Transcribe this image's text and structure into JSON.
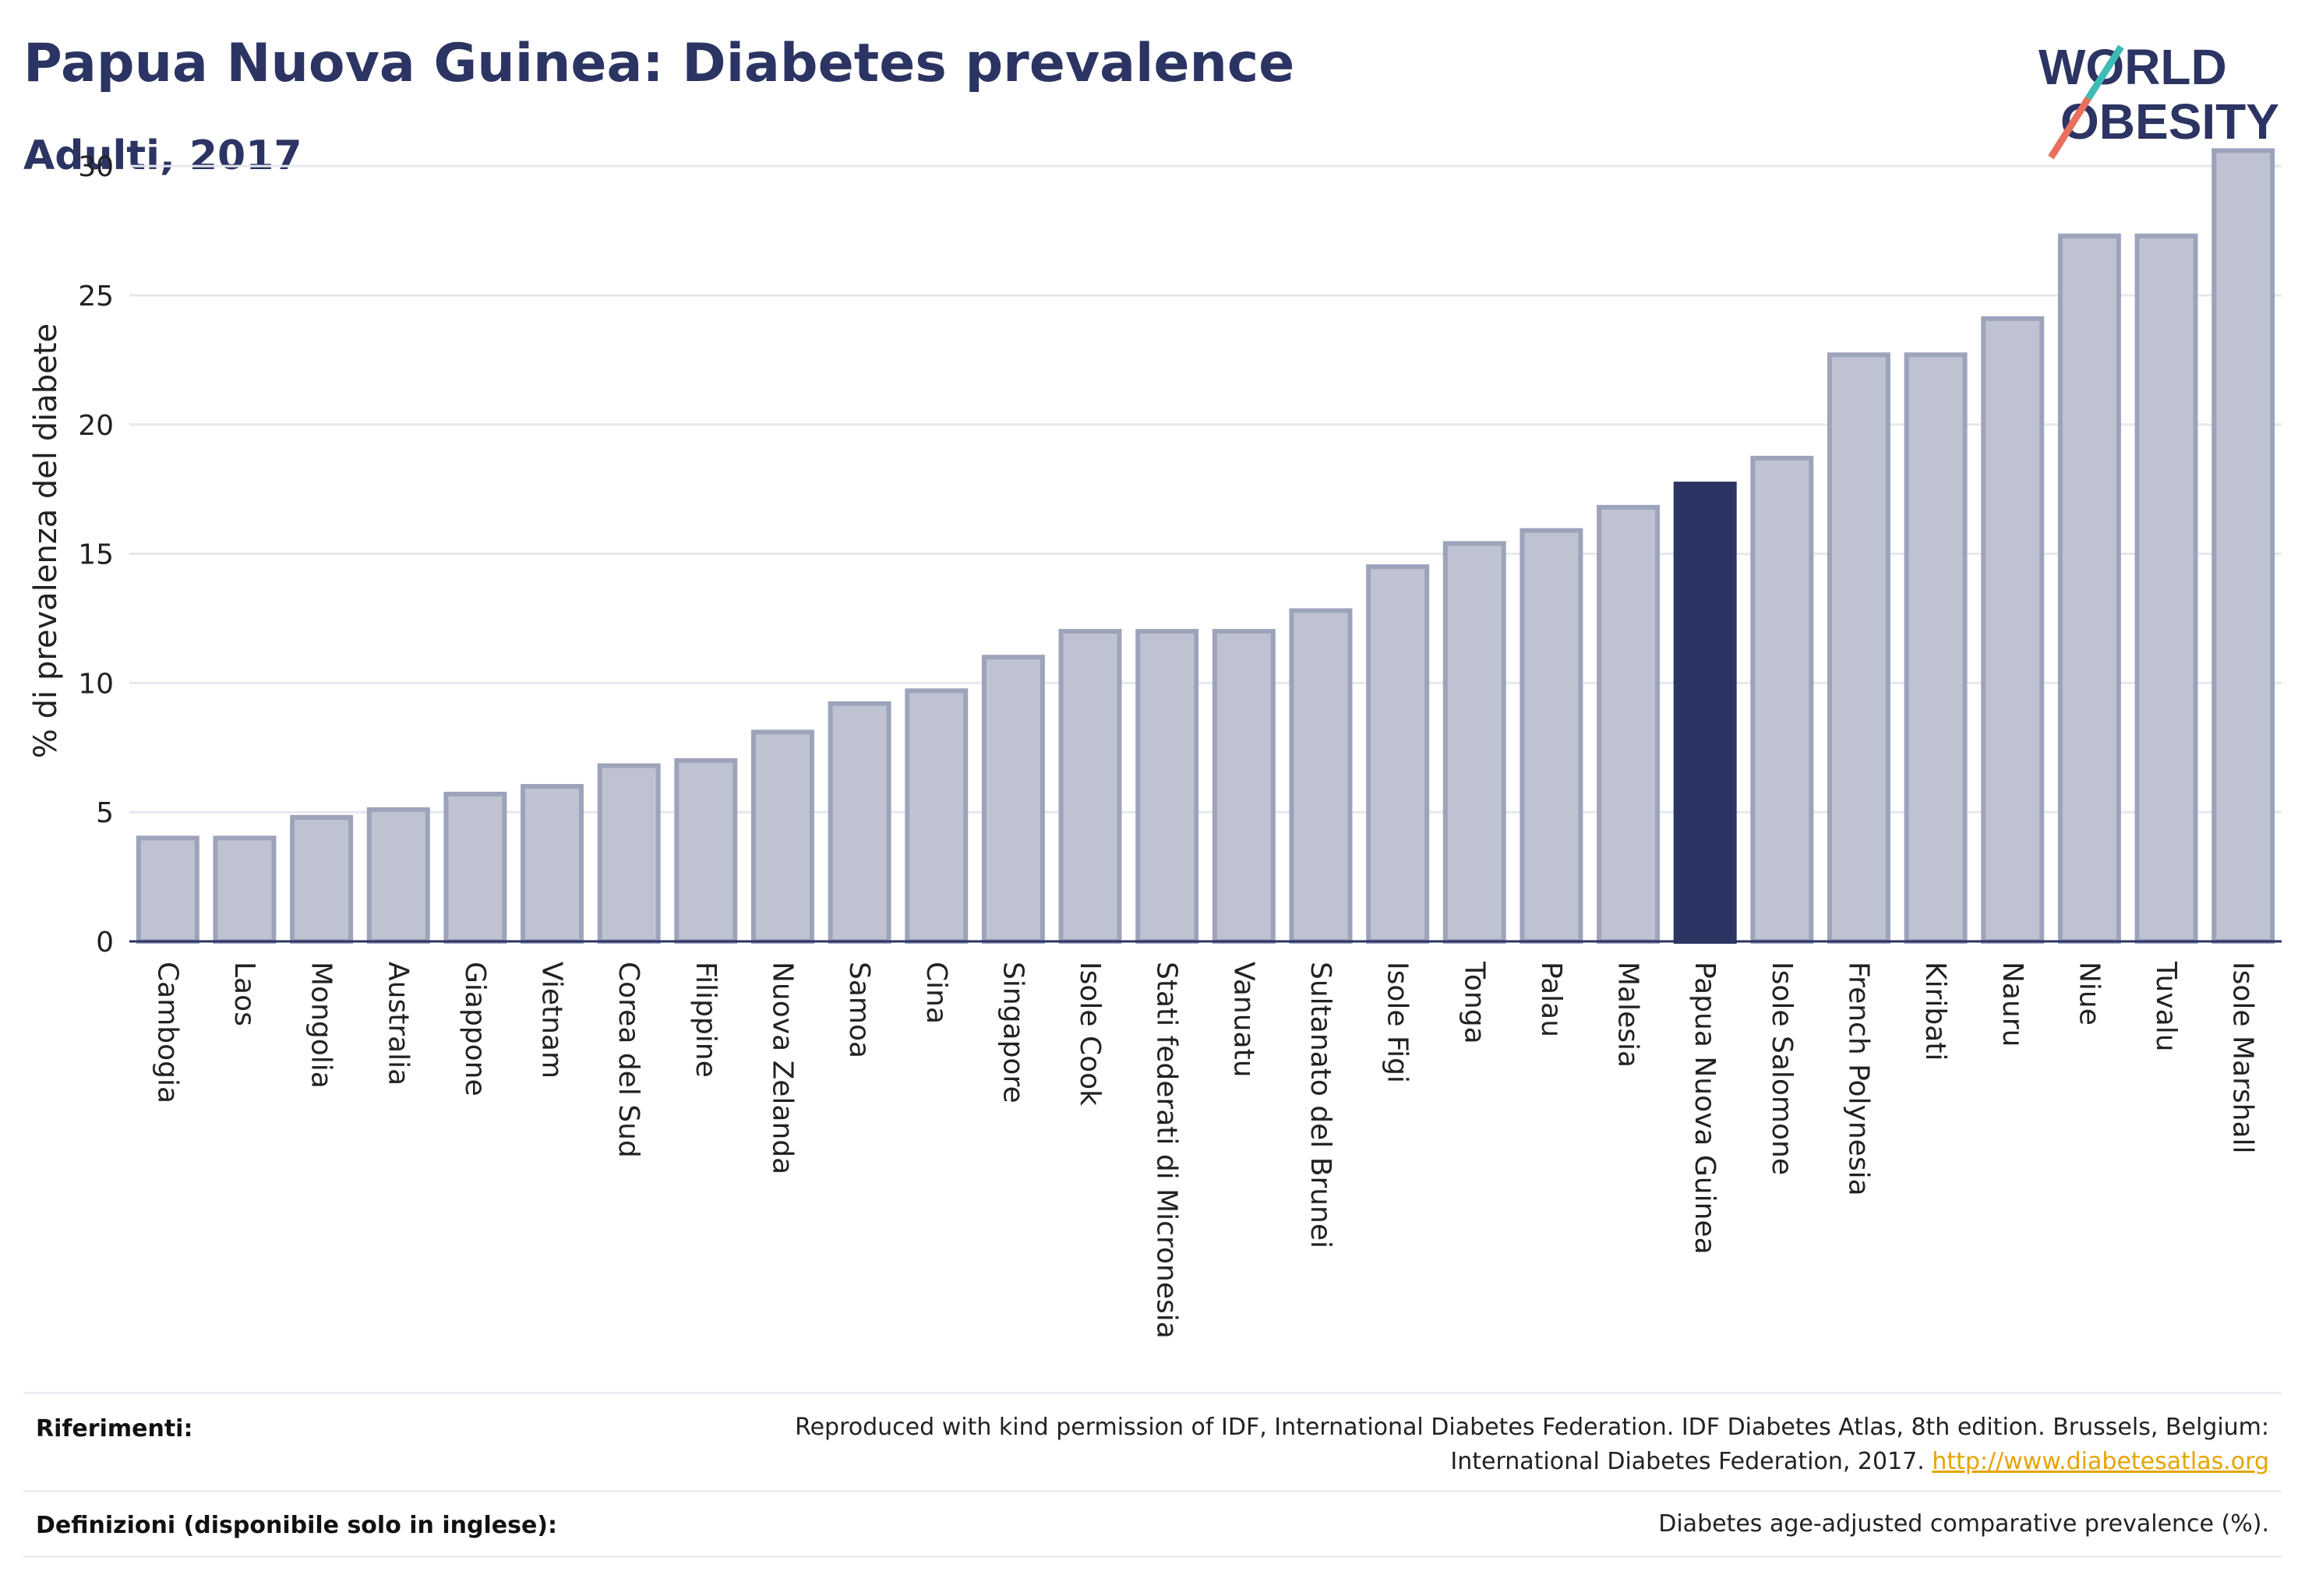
{
  "header": {
    "title": "Papua Nuova Guinea: Diabetes prevalence",
    "subtitle": "Adulti, 2017",
    "logo_line1": "WORLD",
    "logo_line2": "OBESITY"
  },
  "chart_data": {
    "type": "bar",
    "ylabel": "% di prevalenza del diabete",
    "xlabel": "",
    "ylim": [
      0,
      31
    ],
    "yticks": [
      0,
      5,
      10,
      15,
      20,
      25,
      30
    ],
    "grid": true,
    "highlight": "Papua Nuova Guinea",
    "categories": [
      "Cambogia",
      "Laos",
      "Mongolia",
      "Australia",
      "Giappone",
      "Vietnam",
      "Corea del Sud",
      "Filippine",
      "Nuova Zelanda",
      "Samoa",
      "Cina",
      "Singapore",
      "Isole Cook",
      "Stati federati di Micronesia",
      "Vanuatu",
      "Sultanato del Brunei",
      "Isole Figi",
      "Tonga",
      "Palau",
      "Malesia",
      "Papua Nuova Guinea",
      "Isole Salomone",
      "French Polynesia",
      "Kiribati",
      "Nauru",
      "Niue",
      "Tuvalu",
      "Isole Marshall"
    ],
    "values": [
      4.0,
      4.0,
      4.8,
      5.1,
      5.7,
      6.0,
      6.8,
      7.0,
      8.1,
      9.2,
      9.7,
      11.0,
      12.0,
      12.0,
      12.0,
      12.8,
      14.5,
      15.4,
      15.9,
      16.8,
      17.7,
      18.7,
      22.7,
      22.7,
      24.1,
      27.3,
      27.3,
      30.6
    ],
    "colors": {
      "bar": "#bfc3d1",
      "bar_edge": "#9da3bb",
      "highlight": "#2b3462"
    }
  },
  "footer": {
    "references_label": "Riferimenti:",
    "references_line1": "Reproduced with kind permission of IDF, International Diabetes Federation. IDF Diabetes Atlas, 8th edition. Brussels, Belgium:",
    "references_line2": "International Diabetes Federation, 2017.",
    "references_link": "http://www.diabetesatlas.org",
    "definitions_label": "Definizioni (disponibile solo in inglese):",
    "definitions_text": "Diabetes age-adjusted comparative prevalence (%)."
  }
}
